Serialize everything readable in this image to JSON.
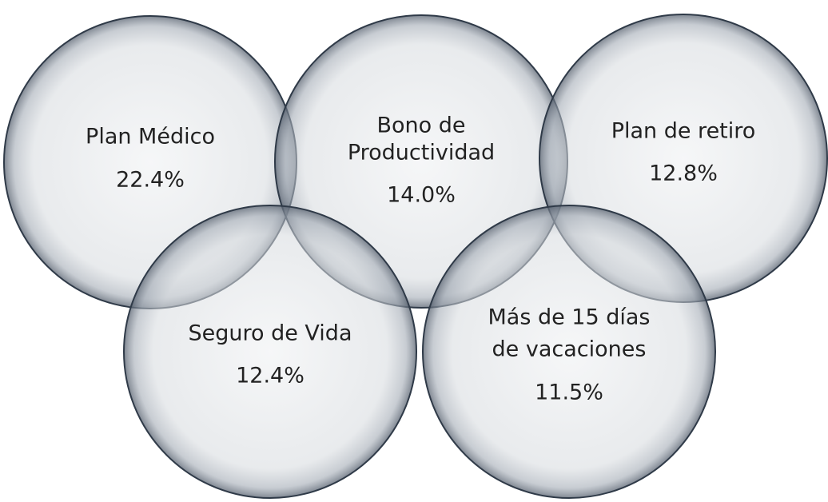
{
  "nodes": [
    {
      "label": [
        "Plan Médico"
      ],
      "value": "22.4%"
    },
    {
      "label": [
        "Bono de",
        "Productividad"
      ],
      "value": "14.0%"
    },
    {
      "label": [
        "Plan de retiro"
      ],
      "value": "12.8%"
    },
    {
      "label": [
        "Seguro de Vida"
      ],
      "value": "12.4%"
    },
    {
      "label": [
        "Más de 15 días",
        "de vacaciones"
      ],
      "value": "11.5%"
    }
  ]
}
